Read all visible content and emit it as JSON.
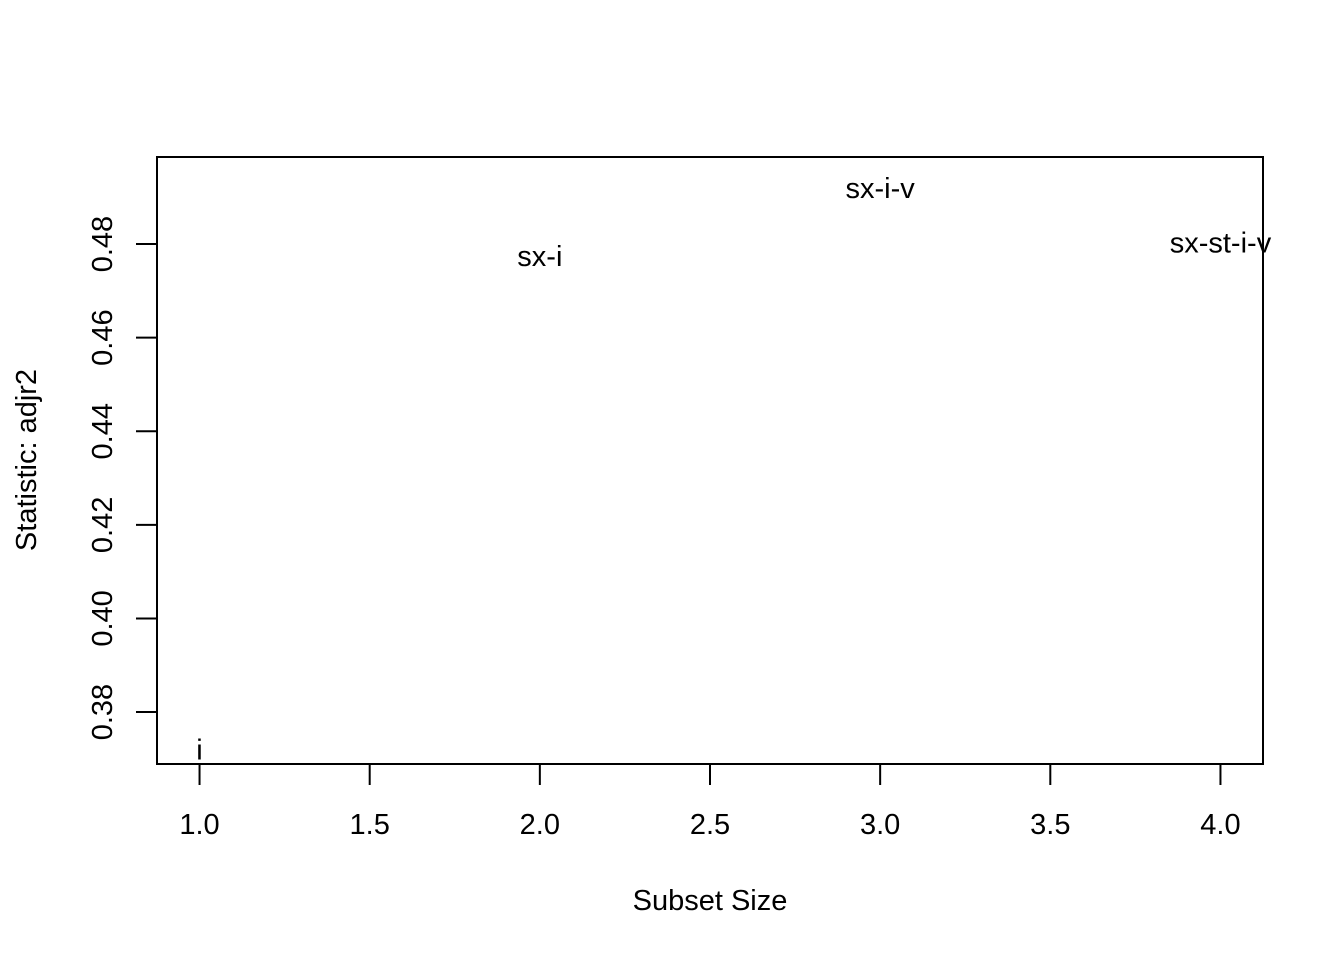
{
  "chart_data": {
    "type": "scatter",
    "title": "",
    "xlabel": "Subset Size",
    "ylabel": "Statistic: adjr2",
    "xlim": [
      0.875,
      4.125
    ],
    "ylim": [
      0.3689,
      0.4986
    ],
    "xticks": [
      1.0,
      1.5,
      2.0,
      2.5,
      3.0,
      3.5,
      4.0
    ],
    "xtick_labels": [
      "1.0",
      "1.5",
      "2.0",
      "2.5",
      "3.0",
      "3.5",
      "4.0"
    ],
    "yticks": [
      0.38,
      0.4,
      0.42,
      0.44,
      0.46,
      0.48
    ],
    "ytick_labels": [
      "0.38",
      "0.40",
      "0.42",
      "0.44",
      "0.46",
      "0.48"
    ],
    "grid": false,
    "points": [
      {
        "x": 1,
        "y": 0.3718,
        "label": "i"
      },
      {
        "x": 2,
        "y": 0.4772,
        "label": "sx-i"
      },
      {
        "x": 3,
        "y": 0.4918,
        "label": "sx-i-v"
      },
      {
        "x": 4,
        "y": 0.4801,
        "label": "sx-st-i-v"
      }
    ]
  }
}
